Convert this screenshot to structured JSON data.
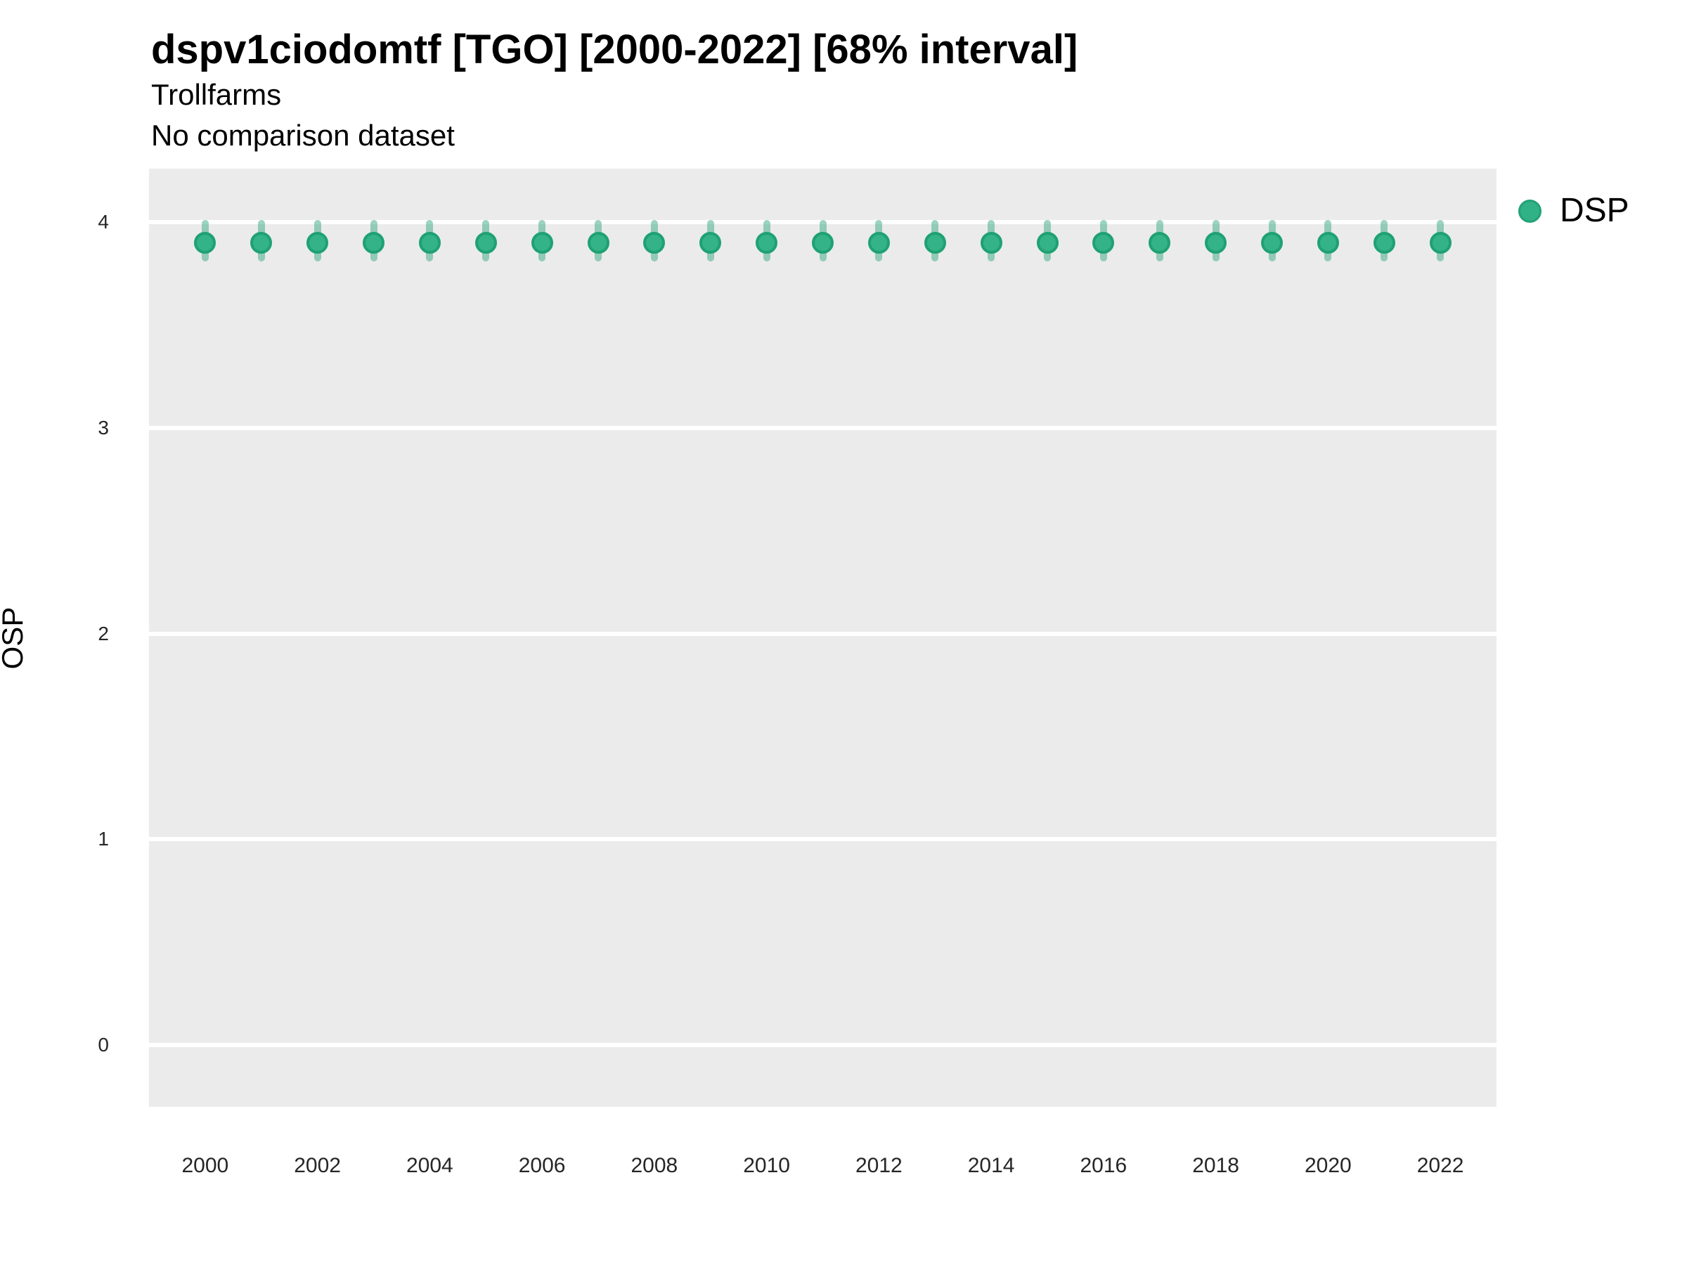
{
  "header": {
    "title": "dspv1ciodomtf [TGO] [2000-2022] [68% interval]",
    "subtitle": "Trollfarms",
    "note": "No comparison dataset"
  },
  "legend": {
    "position": "right",
    "items": [
      {
        "label": "DSP",
        "color": "#31B186",
        "border_color": "#23A276",
        "icon": "circle"
      }
    ]
  },
  "chart_data": {
    "type": "scatter",
    "title": "dspv1ciodomtf [TGO] [2000-2022] [68% interval]",
    "subtitle": "Trollfarms",
    "note": "No comparison dataset",
    "interval_label": "68% interval",
    "xlabel": "",
    "ylabel": "OSP",
    "x": [
      2000,
      2001,
      2002,
      2003,
      2004,
      2005,
      2006,
      2007,
      2008,
      2009,
      2010,
      2011,
      2012,
      2013,
      2014,
      2015,
      2016,
      2017,
      2018,
      2019,
      2020,
      2021,
      2022
    ],
    "series": [
      {
        "name": "DSP",
        "values": [
          3.9,
          3.9,
          3.9,
          3.9,
          3.9,
          3.9,
          3.9,
          3.9,
          3.9,
          3.9,
          3.9,
          3.9,
          3.9,
          3.9,
          3.9,
          3.9,
          3.9,
          3.9,
          3.9,
          3.9,
          3.9,
          3.9,
          3.9
        ],
        "interval_low": [
          3.81,
          3.81,
          3.81,
          3.81,
          3.81,
          3.81,
          3.81,
          3.81,
          3.81,
          3.81,
          3.81,
          3.81,
          3.81,
          3.81,
          3.81,
          3.81,
          3.81,
          3.81,
          3.81,
          3.81,
          3.81,
          3.81,
          3.81
        ],
        "interval_high": [
          4.01,
          4.01,
          4.01,
          4.01,
          4.01,
          4.01,
          4.01,
          4.01,
          4.01,
          4.01,
          4.01,
          4.01,
          4.01,
          4.01,
          4.01,
          4.01,
          4.01,
          4.01,
          4.01,
          4.01,
          4.01,
          4.01,
          4.01
        ],
        "marker_color": "#34B389",
        "marker_border_color": "#1FA173",
        "interval_color": "rgba(46,166,126,0.48)"
      }
    ],
    "xticks": [
      2000,
      2002,
      2004,
      2006,
      2008,
      2010,
      2012,
      2014,
      2016,
      2018,
      2020,
      2022
    ],
    "yticks": [
      0,
      1,
      2,
      3,
      4
    ],
    "xlim": [
      1999,
      2023
    ],
    "ylim": [
      -0.3,
      4.26
    ],
    "grid": "horizontal-major-only",
    "grid_color": "#FFFFFF",
    "panel_bg": "#EBEBEB",
    "legend_position": "right"
  }
}
